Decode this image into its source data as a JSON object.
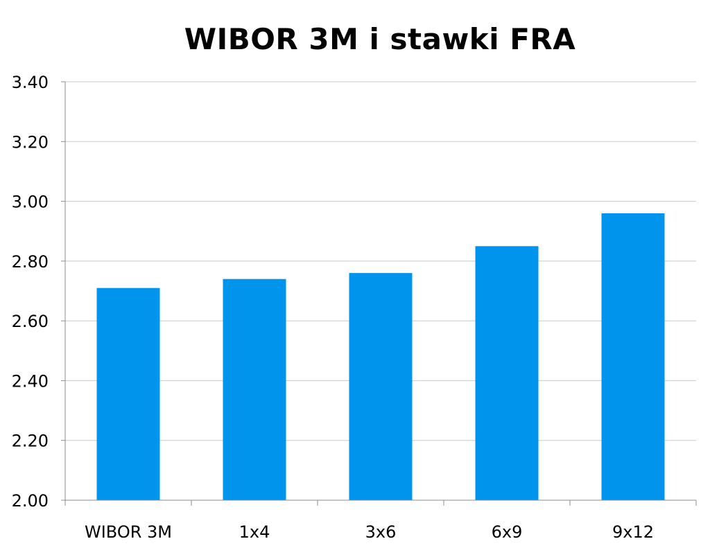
{
  "chart_data": {
    "type": "bar",
    "title": "WIBOR 3M i stawki FRA",
    "xlabel": "",
    "ylabel": "",
    "categories": [
      "WIBOR 3M",
      "1x4",
      "3x6",
      "6x9",
      "9x12"
    ],
    "values": [
      2.71,
      2.74,
      2.76,
      2.85,
      2.96
    ],
    "ylim": [
      2.0,
      3.4
    ],
    "yticks": [
      "2.00",
      "2.20",
      "2.40",
      "2.60",
      "2.80",
      "3.00",
      "3.20",
      "3.40"
    ],
    "grid": true,
    "legend": "none",
    "colors": {
      "bar": "#0094EC",
      "grid": "#C8C8C8",
      "axis": "#8C8C8C"
    }
  }
}
